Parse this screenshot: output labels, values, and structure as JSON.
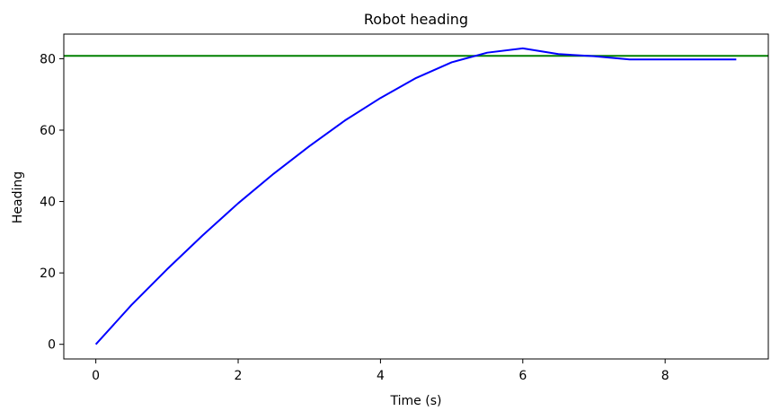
{
  "chart_data": {
    "type": "line",
    "title": "Robot heading",
    "xlabel": "Time (s)",
    "ylabel": "Heading",
    "xlim": [
      -0.45,
      9.45
    ],
    "ylim": [
      -4.1,
      86.9
    ],
    "xticks": [
      0,
      2,
      4,
      6,
      8
    ],
    "yticks": [
      0,
      20,
      40,
      60,
      80
    ],
    "grid": false,
    "series": [
      {
        "color": "#0000ff",
        "x": [
          0,
          0.5,
          1.0,
          1.5,
          2.0,
          2.5,
          3.0,
          3.5,
          4.0,
          4.5,
          5.0,
          5.5,
          6.0,
          6.5,
          7.0,
          7.5,
          8.0,
          8.5,
          9.0
        ],
        "y": [
          0,
          11.0,
          21.0,
          30.5,
          39.5,
          47.8,
          55.5,
          62.7,
          69.0,
          74.6,
          79.0,
          81.7,
          82.9,
          81.3,
          80.7,
          79.8,
          79.8,
          79.8,
          79.8
        ]
      }
    ],
    "hlines": [
      {
        "y": 80.8,
        "color": "#008000"
      }
    ]
  }
}
